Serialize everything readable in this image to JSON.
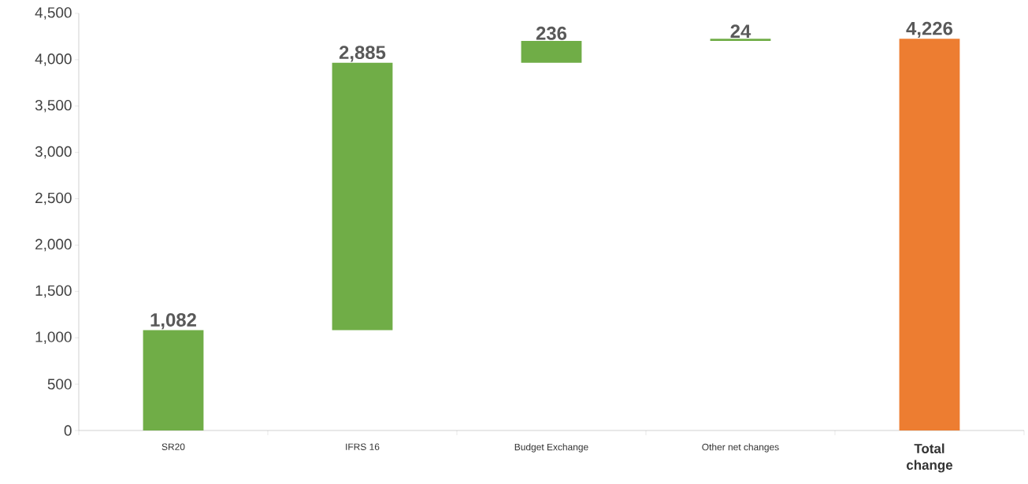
{
  "chart_data": {
    "type": "bar",
    "categories": [
      "SR20",
      "IFRS 16",
      "Budget Exchange",
      "Other net changes",
      "Total change"
    ],
    "values": [
      1082,
      2885,
      236,
      24,
      4226
    ],
    "base": [
      0,
      1082,
      3967,
      4203,
      0
    ],
    "colors": [
      "#70ad47",
      "#70ad47",
      "#70ad47",
      "#70ad47",
      "#ed7d31"
    ],
    "value_labels": [
      "1,082",
      "2,885",
      "236",
      "24",
      "4,226"
    ],
    "ylim": [
      0,
      4500
    ],
    "yticks": [
      {
        "value": 0,
        "label": "0"
      },
      {
        "value": 500,
        "label": "500"
      },
      {
        "value": 1000,
        "label": "1,000"
      },
      {
        "value": 1500,
        "label": "1,500"
      },
      {
        "value": 2000,
        "label": "2,000"
      },
      {
        "value": 2500,
        "label": "2,500"
      },
      {
        "value": 3000,
        "label": "3,000"
      },
      {
        "value": 3500,
        "label": "3,500"
      },
      {
        "value": 4000,
        "label": "4,000"
      },
      {
        "value": 4500,
        "label": "4,500"
      }
    ]
  }
}
